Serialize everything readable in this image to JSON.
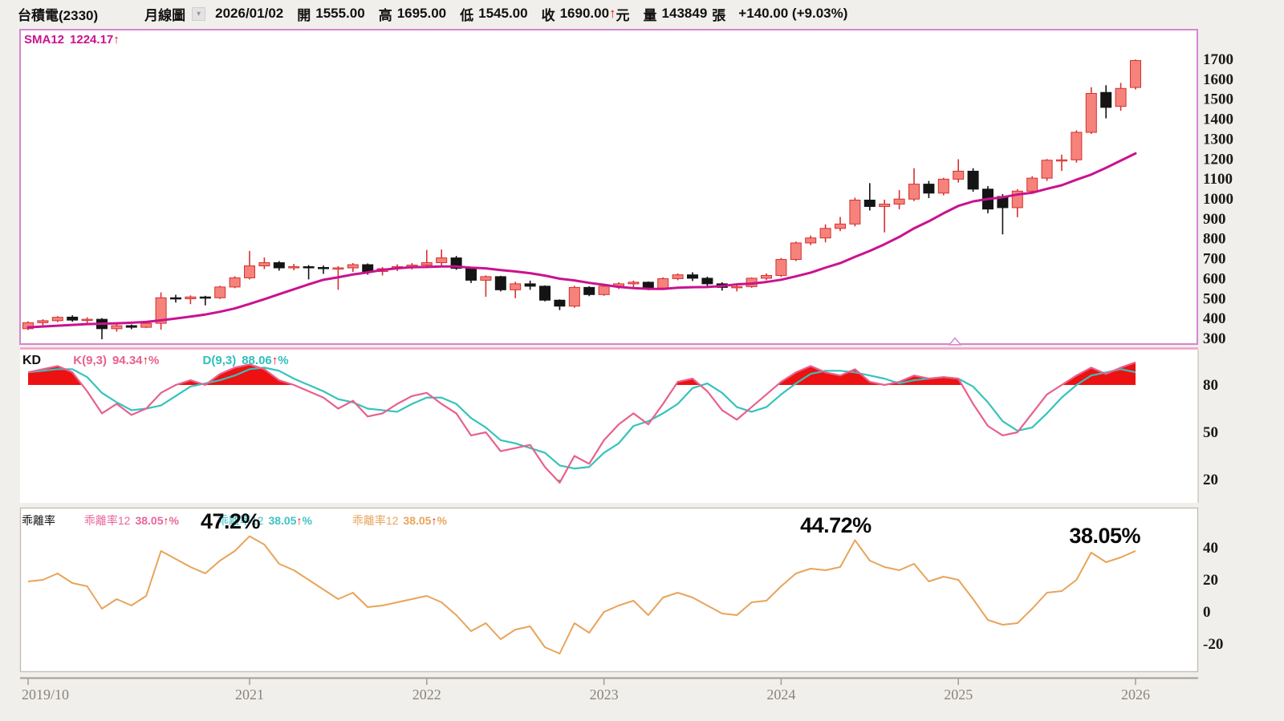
{
  "header": {
    "stock_name": "台積電(2330)",
    "period": "月線圖",
    "date": "2026/01/02",
    "open_label": "開",
    "open": "1555.00",
    "high_label": "高",
    "high": "1695.00",
    "low_label": "低",
    "low": "1545.00",
    "close_label": "收",
    "close": "1690.00",
    "up_arrow": "↑",
    "currency": "元",
    "volume_label": "量",
    "volume": "143849",
    "volume_unit": "張",
    "change": "+140.00 (+9.03%)"
  },
  "main_panel": {
    "sma_name": "SMA12",
    "sma_value": "1224.17",
    "sma_arrow": "↑",
    "sma_color": "#c9138f"
  },
  "kd_panel": {
    "title": "KD",
    "k_name": "K(9,3)",
    "k_value": "94.34",
    "k_color": "#e8608e",
    "d_name": "D(9,3)",
    "d_value": "88.06",
    "d_color": "#2fbfbc",
    "arrow": "↑",
    "percent": "%"
  },
  "bias_panel": {
    "title": "乖離率",
    "legend": [
      {
        "name": "乖離率12",
        "value": "38.05",
        "color": "#e8659a"
      },
      {
        "name": "乖離率12",
        "value": "38.05",
        "color": "#3cc4c4"
      },
      {
        "name": "乖離率12",
        "value": "38.05",
        "color": "#e8a45a"
      }
    ],
    "arrow": "↑",
    "percent": "%"
  },
  "chart_data": {
    "type": "candlestick",
    "title": "台積電(2330) 月線圖",
    "start_month": "2019/10",
    "end_month": "2026/01",
    "x_ticks": [
      {
        "label": "2019/10",
        "month_index": 0
      },
      {
        "label": "2021",
        "month_index": 15
      },
      {
        "label": "2022",
        "month_index": 27
      },
      {
        "label": "2023",
        "month_index": 39
      },
      {
        "label": "2024",
        "month_index": 51
      },
      {
        "label": "2025",
        "month_index": 63
      },
      {
        "label": "2026",
        "month_index": 75
      }
    ],
    "price_axis_ticks": [
      1700,
      1600,
      1500,
      1400,
      1300,
      1200,
      1100,
      1000,
      900,
      800,
      700,
      600,
      500,
      400,
      300
    ],
    "candles_ohlc": [
      [
        345,
        382,
        338,
        375
      ],
      [
        375,
        392,
        362,
        385
      ],
      [
        385,
        408,
        378,
        402
      ],
      [
        403,
        412,
        380,
        388
      ],
      [
        388,
        402,
        368,
        392
      ],
      [
        392,
        398,
        292,
        345
      ],
      [
        345,
        368,
        330,
        360
      ],
      [
        360,
        366,
        342,
        352
      ],
      [
        352,
        378,
        348,
        372
      ],
      [
        372,
        527,
        340,
        500
      ],
      [
        500,
        515,
        476,
        495
      ],
      [
        495,
        512,
        468,
        504
      ],
      [
        504,
        510,
        462,
        500
      ],
      [
        500,
        560,
        494,
        554
      ],
      [
        554,
        608,
        548,
        600
      ],
      [
        600,
        735,
        592,
        660
      ],
      [
        660,
        702,
        644,
        676
      ],
      [
        676,
        684,
        636,
        650
      ],
      [
        650,
        670,
        638,
        656
      ],
      [
        656,
        664,
        592,
        652
      ],
      [
        652,
        662,
        620,
        646
      ],
      [
        646,
        658,
        540,
        650
      ],
      [
        650,
        674,
        630,
        666
      ],
      [
        666,
        672,
        616,
        632
      ],
      [
        632,
        654,
        612,
        646
      ],
      [
        646,
        668,
        634,
        656
      ],
      [
        656,
        674,
        642,
        664
      ],
      [
        664,
        740,
        656,
        676
      ],
      [
        676,
        742,
        660,
        700
      ],
      [
        700,
        710,
        640,
        648
      ],
      [
        648,
        652,
        574,
        588
      ],
      [
        588,
        612,
        505,
        606
      ],
      [
        606,
        610,
        532,
        540
      ],
      [
        540,
        580,
        498,
        570
      ],
      [
        570,
        586,
        540,
        558
      ],
      [
        558,
        562,
        482,
        488
      ],
      [
        488,
        492,
        438,
        458
      ],
      [
        458,
        560,
        450,
        552
      ],
      [
        552,
        558,
        508,
        516
      ],
      [
        516,
        565,
        510,
        558
      ],
      [
        558,
        578,
        544,
        570
      ],
      [
        570,
        586,
        552,
        578
      ],
      [
        578,
        582,
        538,
        548
      ],
      [
        548,
        602,
        544,
        596
      ],
      [
        596,
        622,
        588,
        615
      ],
      [
        615,
        628,
        584,
        598
      ],
      [
        598,
        606,
        556,
        570
      ],
      [
        570,
        578,
        536,
        552
      ],
      [
        552,
        568,
        532,
        556
      ],
      [
        556,
        602,
        550,
        598
      ],
      [
        598,
        622,
        588,
        612
      ],
      [
        612,
        700,
        604,
        692
      ],
      [
        692,
        782,
        684,
        775
      ],
      [
        775,
        812,
        764,
        800
      ],
      [
        800,
        868,
        778,
        848
      ],
      [
        848,
        905,
        834,
        870
      ],
      [
        870,
        1002,
        858,
        990
      ],
      [
        990,
        1075,
        938,
        958
      ],
      [
        958,
        992,
        828,
        970
      ],
      [
        970,
        1040,
        944,
        995
      ],
      [
        995,
        1150,
        985,
        1070
      ],
      [
        1070,
        1086,
        1000,
        1025
      ],
      [
        1025,
        1102,
        1014,
        1095
      ],
      [
        1095,
        1195,
        1078,
        1135
      ],
      [
        1135,
        1150,
        1032,
        1045
      ],
      [
        1045,
        1060,
        924,
        945
      ],
      [
        1008,
        1020,
        818,
        952
      ],
      [
        952,
        1045,
        904,
        1035
      ],
      [
        1035,
        1110,
        1022,
        1100
      ],
      [
        1100,
        1196,
        1086,
        1190
      ],
      [
        1188,
        1218,
        1136,
        1192
      ],
      [
        1192,
        1340,
        1178,
        1330
      ],
      [
        1330,
        1556,
        1322,
        1525
      ],
      [
        1530,
        1566,
        1400,
        1455
      ],
      [
        1460,
        1578,
        1438,
        1550
      ],
      [
        1555,
        1695,
        1545,
        1690
      ]
    ],
    "sma12": [
      352,
      356,
      360,
      364,
      368,
      370,
      372,
      375,
      379,
      387,
      396,
      405.7,
      415.9,
      430,
      446.5,
      469.2,
      492.8,
      518,
      542.6,
      567.4,
      590.2,
      602.7,
      616.8,
      627.5,
      639.8,
      648.2,
      653.4,
      654.7,
      656.8,
      656.8,
      651.2,
      647.5,
      638.8,
      632.1,
      623.2,
      611.3,
      595.8,
      587.2,
      574.8,
      565.1,
      554.3,
      548.4,
      545.1,
      544.3,
      550.5,
      552.8,
      553.8,
      559.2,
      567.3,
      571.2,
      579.3,
      590.4,
      607.5,
      626,
      651,
      673.8,
      705.1,
      735.1,
      768.4,
      805.3,
      848.2,
      883.8,
      924,
      960.9,
      983.4,
      995.5,
      1004.2,
      1017.9,
      1027.1,
      1046.4,
      1064.3,
      1092.3,
      1118,
      1152,
      1188,
      1224.2
    ],
    "kd": {
      "axis_ticks": [
        80,
        50,
        20
      ],
      "overbought": 80,
      "oversold": 20,
      "k": [
        88,
        90,
        92,
        88,
        76,
        62,
        68,
        61,
        65,
        75,
        80,
        83,
        80,
        87,
        91,
        93,
        90,
        83,
        80,
        76,
        72,
        65,
        70,
        60,
        62,
        68,
        73,
        75,
        68,
        62,
        48,
        50,
        38,
        40,
        42,
        28,
        18,
        35,
        30,
        45,
        55,
        62,
        55,
        68,
        82,
        84,
        76,
        64,
        58,
        66,
        74,
        82,
        88,
        92,
        88,
        86,
        90,
        82,
        80,
        82,
        86,
        84,
        85,
        84,
        68,
        54,
        48,
        50,
        62,
        74,
        80,
        86,
        91,
        87,
        91,
        94.34
      ],
      "d": [
        88,
        89,
        90,
        90,
        85,
        75,
        69,
        64,
        65,
        67,
        73,
        79,
        81,
        83,
        86,
        90,
        91,
        89,
        84,
        80,
        76,
        71,
        69,
        65,
        64,
        63,
        68,
        72,
        72,
        68,
        59,
        53,
        45,
        43,
        40,
        37,
        29,
        27,
        28,
        37,
        43,
        54,
        57,
        62,
        68,
        78,
        81,
        75,
        66,
        63,
        66,
        74,
        81,
        87,
        89,
        89,
        88,
        86,
        84,
        81,
        83,
        84,
        85,
        84,
        79,
        69,
        57,
        51,
        53,
        62,
        72,
        80,
        86,
        88,
        90,
        88.06
      ]
    },
    "bias": {
      "axis_ticks": [
        40,
        20,
        0,
        -20
      ],
      "values": [
        19,
        20,
        24,
        18,
        16,
        2,
        8,
        4,
        10,
        38,
        33,
        28,
        24,
        32,
        38,
        47.2,
        42,
        30,
        26,
        20,
        14,
        8,
        12,
        3,
        4,
        6,
        8,
        10,
        6,
        -2,
        -12,
        -7,
        -17,
        -11,
        -9,
        -22,
        -26,
        -7,
        -13,
        0,
        4,
        7,
        -2,
        9,
        12,
        9,
        4,
        -1,
        -2,
        6,
        7,
        16,
        24,
        27,
        26,
        28,
        44.72,
        32,
        28,
        26,
        30,
        19,
        22,
        20,
        8,
        -5,
        -8,
        -7,
        2,
        12,
        13,
        20,
        37,
        31,
        34,
        38.05
      ],
      "annotations": [
        {
          "text": "47.2%",
          "month_index": 15,
          "anchor": "middle"
        },
        {
          "text": "44.72%",
          "month_index": 56,
          "anchor": "middle"
        },
        {
          "text": "38.05%",
          "month_index": 75,
          "anchor": "end"
        }
      ]
    },
    "colors": {
      "up_fill": "#f5837b",
      "up_stroke": "#d63030",
      "down": "#141414",
      "sma": "#c9138f",
      "k_line": "#e8608e",
      "d_line": "#35c3bd",
      "overbought_fill": "#ed1111",
      "oversold_fill": "#55d414",
      "bias_line": "#e8a45a",
      "panel_border": "#d487cf",
      "kd_top_border": "#f2a2c6",
      "axis_text": "#191919",
      "x_axis_text": "#8a837c",
      "axis_line": "#a59c92"
    }
  }
}
